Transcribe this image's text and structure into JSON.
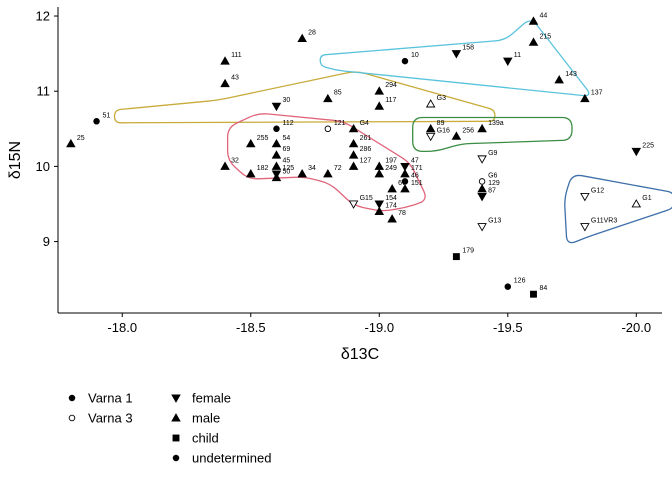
{
  "chart_data": {
    "type": "scatter",
    "xlabel": "δ13C",
    "ylabel": "δ15N",
    "xlim": [
      -17.75,
      -20.1
    ],
    "ylim": [
      8.05,
      12.12
    ],
    "x_reversed": true,
    "x_ticks": [
      {
        "value": -18.0,
        "label": "-18.0"
      },
      {
        "value": -18.5,
        "label": "-18.5"
      },
      {
        "value": -19.0,
        "label": "-19.0"
      },
      {
        "value": -19.5,
        "label": "-19.5"
      },
      {
        "value": -20.0,
        "label": "-20.0"
      }
    ],
    "y_ticks": [
      {
        "value": 9,
        "label": "9"
      },
      {
        "value": 10,
        "label": "10"
      },
      {
        "value": 11,
        "label": "11"
      },
      {
        "value": 12,
        "label": "12"
      }
    ],
    "grid": false,
    "legend_position": "bottom-left",
    "legend": {
      "group": [
        {
          "label": "Varna 1",
          "fill": "#000000"
        },
        {
          "label": "Varna 3",
          "fill": "#ffffff"
        }
      ],
      "sex": [
        {
          "label": "female",
          "shape": "triangle-down"
        },
        {
          "label": "male",
          "shape": "triangle-up"
        },
        {
          "label": "child",
          "shape": "square"
        },
        {
          "label": "undetermined",
          "shape": "circle"
        }
      ]
    },
    "points": [
      {
        "label": "44",
        "x": -19.6,
        "y": 11.93,
        "shape": "triangle-up",
        "fill": "#000000"
      },
      {
        "label": "215",
        "x": -19.6,
        "y": 11.65,
        "shape": "triangle-up",
        "fill": "#000000"
      },
      {
        "label": "158",
        "x": -19.3,
        "y": 11.5,
        "shape": "triangle-down",
        "fill": "#000000"
      },
      {
        "label": "11",
        "x": -19.5,
        "y": 11.4,
        "shape": "triangle-down",
        "fill": "#000000"
      },
      {
        "label": "10",
        "x": -19.1,
        "y": 11.4,
        "shape": "circle",
        "fill": "#000000"
      },
      {
        "label": "143",
        "x": -19.7,
        "y": 11.15,
        "shape": "triangle-up",
        "fill": "#000000"
      },
      {
        "label": "137",
        "x": -19.8,
        "y": 10.9,
        "shape": "triangle-up",
        "fill": "#000000"
      },
      {
        "label": "28",
        "x": -18.7,
        "y": 11.7,
        "shape": "triangle-up",
        "fill": "#000000"
      },
      {
        "label": "111",
        "x": -18.4,
        "y": 11.4,
        "shape": "triangle-up",
        "fill": "#000000"
      },
      {
        "label": "43",
        "x": -18.4,
        "y": 11.1,
        "shape": "triangle-up",
        "fill": "#000000"
      },
      {
        "label": "294",
        "x": -19.0,
        "y": 11.0,
        "shape": "triangle-up",
        "fill": "#000000"
      },
      {
        "label": "85",
        "x": -18.8,
        "y": 10.9,
        "shape": "triangle-up",
        "fill": "#000000"
      },
      {
        "label": "117",
        "x": -19.0,
        "y": 10.8,
        "shape": "triangle-up",
        "fill": "#000000"
      },
      {
        "label": "G3",
        "x": -19.2,
        "y": 10.83,
        "shape": "triangle-up",
        "fill": "#ffffff"
      },
      {
        "label": "30",
        "x": -18.6,
        "y": 10.8,
        "shape": "triangle-down",
        "fill": "#000000"
      },
      {
        "label": "51",
        "x": -17.9,
        "y": 10.6,
        "shape": "circle",
        "fill": "#000000"
      },
      {
        "label": "112",
        "x": -18.6,
        "y": 10.5,
        "shape": "circle",
        "fill": "#000000"
      },
      {
        "label": "121",
        "x": -18.8,
        "y": 10.5,
        "shape": "circle",
        "fill": "#ffffff"
      },
      {
        "label": "89",
        "x": -19.2,
        "y": 10.5,
        "shape": "triangle-up",
        "fill": "#000000"
      },
      {
        "label": "139a",
        "x": -19.4,
        "y": 10.5,
        "shape": "triangle-up",
        "fill": "#000000"
      },
      {
        "label": "256",
        "x": -19.3,
        "y": 10.4,
        "shape": "triangle-up",
        "fill": "#000000"
      },
      {
        "label": "G16",
        "x": -19.2,
        "y": 10.4,
        "shape": "triangle-down",
        "fill": "#ffffff"
      },
      {
        "label": "G4",
        "x": -18.9,
        "y": 10.5,
        "shape": "triangle-up",
        "fill": "#000000"
      },
      {
        "label": "261",
        "x": -18.9,
        "y": 10.3,
        "shape": "triangle-up",
        "fill": "#000000"
      },
      {
        "label": "286",
        "x": -18.9,
        "y": 10.15,
        "shape": "triangle-up",
        "fill": "#000000"
      },
      {
        "label": "54",
        "x": -18.6,
        "y": 10.3,
        "shape": "triangle-up",
        "fill": "#000000"
      },
      {
        "label": "25",
        "x": -17.8,
        "y": 10.3,
        "shape": "triangle-up",
        "fill": "#000000"
      },
      {
        "label": "255",
        "x": -18.5,
        "y": 10.3,
        "shape": "triangle-up",
        "fill": "#000000"
      },
      {
        "label": "69",
        "x": -18.6,
        "y": 10.15,
        "shape": "triangle-up",
        "fill": "#000000"
      },
      {
        "label": "G9",
        "x": -19.4,
        "y": 10.1,
        "shape": "triangle-down",
        "fill": "#ffffff"
      },
      {
        "label": "225",
        "x": -20.0,
        "y": 10.2,
        "shape": "triangle-down",
        "fill": "#000000"
      },
      {
        "label": "32",
        "x": -18.4,
        "y": 10.0,
        "shape": "triangle-up",
        "fill": "#000000"
      },
      {
        "label": "182",
        "x": -18.5,
        "y": 9.9,
        "shape": "triangle-up",
        "fill": "#000000"
      },
      {
        "label": "45",
        "x": -18.6,
        "y": 10.0,
        "shape": "triangle-up",
        "fill": "#000000"
      },
      {
        "label": "125",
        "x": -18.6,
        "y": 9.9,
        "shape": "triangle-down",
        "fill": "#000000"
      },
      {
        "label": "50",
        "x": -18.6,
        "y": 9.85,
        "shape": "triangle-up",
        "fill": "#000000"
      },
      {
        "label": "34",
        "x": -18.7,
        "y": 9.9,
        "shape": "triangle-up",
        "fill": "#000000"
      },
      {
        "label": "72",
        "x": -18.8,
        "y": 9.9,
        "shape": "triangle-up",
        "fill": "#000000"
      },
      {
        "label": "127",
        "x": -18.9,
        "y": 10.0,
        "shape": "triangle-up",
        "fill": "#000000"
      },
      {
        "label": "249",
        "x": -19.0,
        "y": 9.9,
        "shape": "triangle-up",
        "fill": "#000000"
      },
      {
        "label": "197",
        "x": -19.0,
        "y": 10.0,
        "shape": "triangle-up",
        "fill": "#000000"
      },
      {
        "label": "47",
        "x": -19.1,
        "y": 10.0,
        "shape": "triangle-down",
        "fill": "#000000"
      },
      {
        "label": "171",
        "x": -19.1,
        "y": 9.9,
        "shape": "triangle-up",
        "fill": "#000000"
      },
      {
        "label": "46",
        "x": -19.1,
        "y": 9.8,
        "shape": "circle",
        "fill": "#000000"
      },
      {
        "label": "G6",
        "x": -19.4,
        "y": 9.8,
        "shape": "circle",
        "fill": "#ffffff"
      },
      {
        "label": "129",
        "x": -19.4,
        "y": 9.7,
        "shape": "triangle-up",
        "fill": "#000000"
      },
      {
        "label": "67",
        "x": -19.05,
        "y": 9.7,
        "shape": "triangle-up",
        "fill": "#000000"
      },
      {
        "label": "151",
        "x": -19.1,
        "y": 9.7,
        "shape": "triangle-up",
        "fill": "#000000"
      },
      {
        "label": "87",
        "x": -19.4,
        "y": 9.6,
        "shape": "triangle-down",
        "fill": "#000000"
      },
      {
        "label": "G15",
        "x": -18.9,
        "y": 9.5,
        "shape": "triangle-down",
        "fill": "#ffffff"
      },
      {
        "label": "154",
        "x": -19.0,
        "y": 9.5,
        "shape": "triangle-down",
        "fill": "#000000"
      },
      {
        "label": "174",
        "x": -19.0,
        "y": 9.4,
        "shape": "triangle-up",
        "fill": "#000000"
      },
      {
        "label": "78",
        "x": -19.05,
        "y": 9.3,
        "shape": "triangle-up",
        "fill": "#000000"
      },
      {
        "label": "G13",
        "x": -19.4,
        "y": 9.2,
        "shape": "triangle-down",
        "fill": "#ffffff"
      },
      {
        "label": "G12",
        "x": -19.8,
        "y": 9.6,
        "shape": "triangle-down",
        "fill": "#ffffff"
      },
      {
        "label": "G1",
        "x": -20.0,
        "y": 9.5,
        "shape": "triangle-up",
        "fill": "#ffffff"
      },
      {
        "label": "G11VR3",
        "x": -19.8,
        "y": 9.2,
        "shape": "triangle-down",
        "fill": "#ffffff"
      },
      {
        "label": "179",
        "x": -19.3,
        "y": 8.8,
        "shape": "square",
        "fill": "#000000"
      },
      {
        "label": "126",
        "x": -19.5,
        "y": 8.4,
        "shape": "circle",
        "fill": "#000000"
      },
      {
        "label": "84",
        "x": -19.6,
        "y": 8.3,
        "shape": "square",
        "fill": "#000000"
      }
    ],
    "hulls": [
      {
        "color": "#c8ab3a",
        "points": [
          [
            -17.97,
            10.75
          ],
          [
            -18.37,
            10.88
          ],
          [
            -18.91,
            11.27
          ],
          [
            -19.45,
            10.75
          ],
          [
            -19.45,
            10.6
          ],
          [
            -17.97,
            10.58
          ]
        ]
      },
      {
        "color": "#5ac3dc",
        "points": [
          [
            -18.77,
            11.48
          ],
          [
            -19.49,
            11.68
          ],
          [
            -19.59,
            11.98
          ],
          [
            -19.83,
            10.93
          ],
          [
            -18.83,
            11.28
          ],
          [
            -18.77,
            11.34
          ]
        ]
      },
      {
        "color": "#e0657a",
        "points": [
          [
            -18.53,
            10.71
          ],
          [
            -18.86,
            10.6
          ],
          [
            -19.12,
            10.05
          ],
          [
            -19.19,
            9.55
          ],
          [
            -19.1,
            9.45
          ],
          [
            -19.01,
            9.4
          ],
          [
            -18.9,
            9.48
          ],
          [
            -18.81,
            9.77
          ],
          [
            -18.71,
            9.86
          ],
          [
            -18.49,
            9.83
          ],
          [
            -18.41,
            10.08
          ],
          [
            -18.41,
            10.52
          ]
        ]
      },
      {
        "color": "#3a8d43",
        "points": [
          [
            -19.13,
            10.65
          ],
          [
            -19.75,
            10.65
          ],
          [
            -19.75,
            10.35
          ],
          [
            -19.32,
            10.3
          ],
          [
            -19.22,
            10.2
          ],
          [
            -19.13,
            10.2
          ]
        ]
      },
      {
        "color": "#3e6fa8",
        "points": [
          [
            -19.75,
            9.9
          ],
          [
            -20.15,
            9.65
          ],
          [
            -20.15,
            9.45
          ],
          [
            -19.8,
            9.05
          ],
          [
            -19.73,
            8.95
          ],
          [
            -19.72,
            9.58
          ]
        ]
      }
    ]
  }
}
